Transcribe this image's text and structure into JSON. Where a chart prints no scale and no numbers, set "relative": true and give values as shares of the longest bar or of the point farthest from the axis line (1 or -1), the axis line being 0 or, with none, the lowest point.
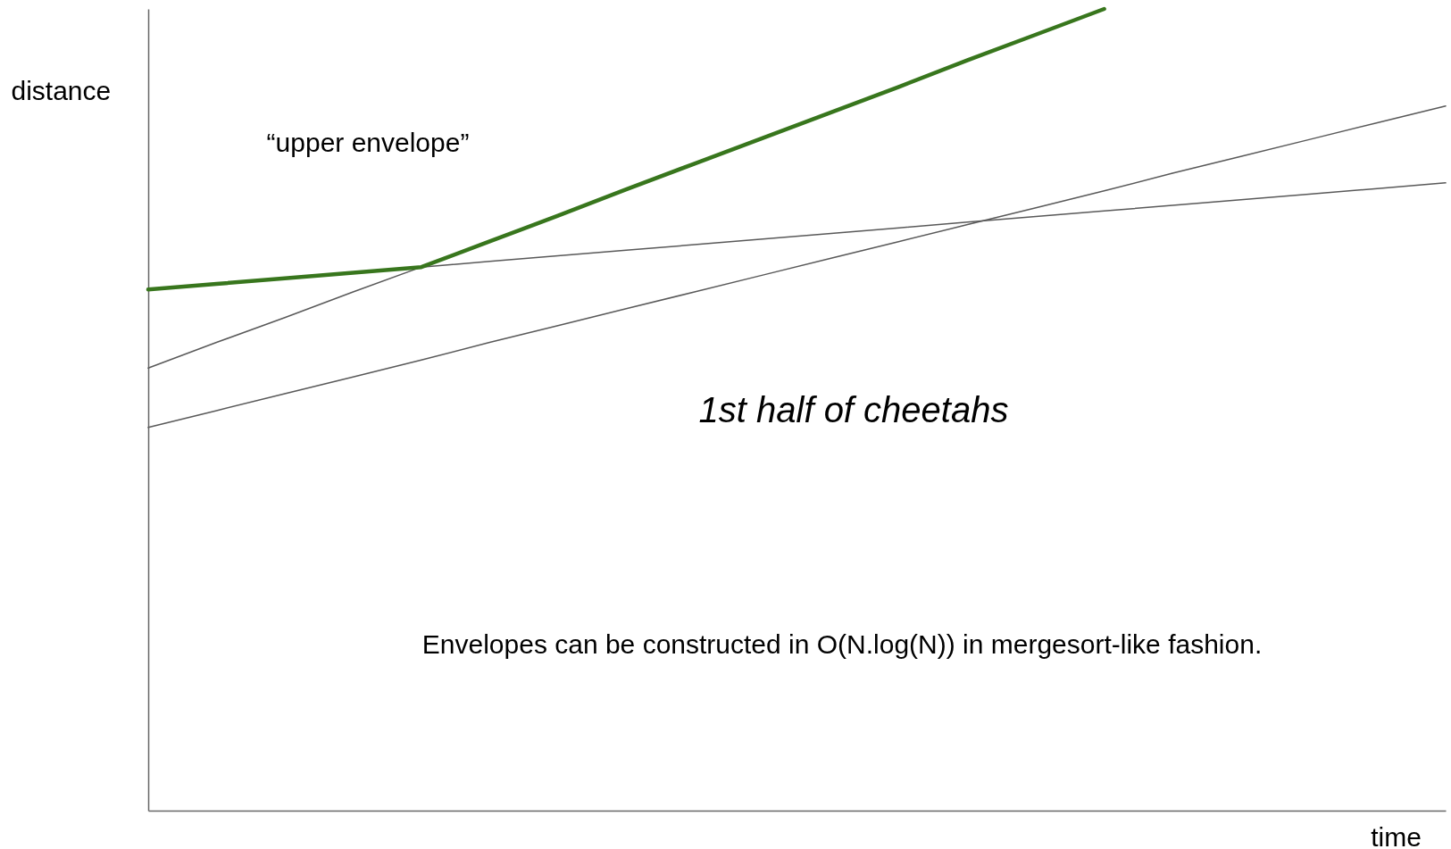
{
  "chart_data": {
    "type": "line",
    "relative": true,
    "xlabel": "time",
    "ylabel": "distance",
    "annotations": [
      "“upper envelope”",
      "1st half of cheetahs",
      "Envelopes can be constructed in O(N.log(N)) in mergesort-like fashion."
    ],
    "categories": [
      null,
      null,
      null,
      null,
      null,
      null,
      null,
      null,
      null,
      null,
      null,
      null,
      null,
      null,
      null,
      null,
      null,
      null,
      null,
      null
    ],
    "series": [
      {
        "color": "#595959",
        "values": [
          0.552,
          0.584,
          0.615,
          0.647,
          0.678,
          null,
          null,
          null,
          null,
          null,
          null,
          null,
          null,
          null,
          null,
          null,
          null,
          null,
          null,
          null
        ]
      },
      {
        "color": "#595959",
        "values": [
          0.65,
          0.657,
          0.664,
          0.671,
          0.678,
          0.685,
          0.692,
          0.699,
          0.706,
          0.713,
          0.72,
          0.727,
          0.734,
          0.741,
          0.748,
          0.755,
          0.762,
          0.769,
          0.776,
          0.783
        ]
      },
      {
        "color": "#595959",
        "values": [
          0.478,
          0.499,
          0.52,
          0.541,
          0.562,
          0.584,
          0.605,
          0.626,
          0.647,
          0.668,
          0.689,
          0.71,
          0.731,
          0.752,
          0.773,
          0.795,
          0.816,
          0.837,
          0.858,
          0.879
        ]
      },
      {
        "color": "#38761d",
        "values": [
          0.65,
          0.657,
          0.664,
          0.671,
          0.678,
          0.71,
          0.742,
          0.775,
          0.807,
          0.839,
          0.871,
          0.903,
          0.936,
          0.968,
          1.0,
          null,
          null,
          null,
          null,
          null
        ]
      }
    ]
  }
}
